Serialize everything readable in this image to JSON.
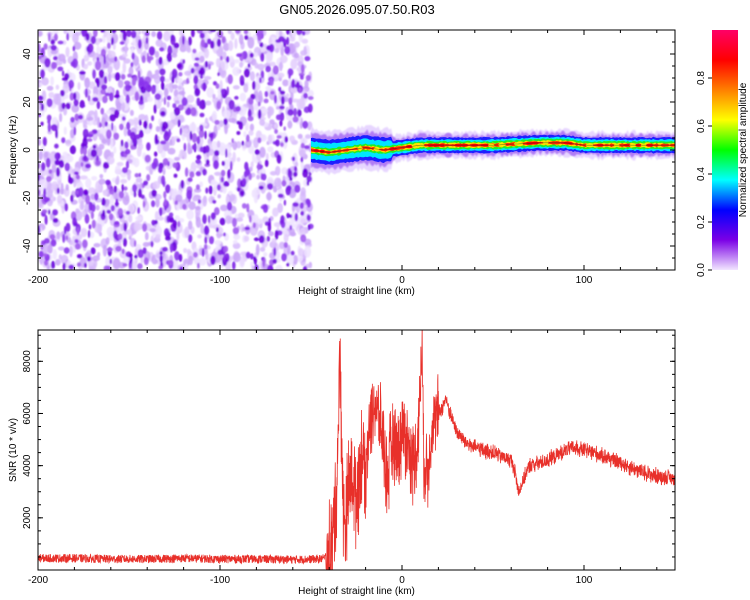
{
  "figure": {
    "title": "GN05.2026.095.07.50.R03"
  },
  "chart_data": [
    {
      "type": "heatmap",
      "xlabel": "Height of straight line (km)",
      "ylabel": "Frequency (Hz)",
      "xlim": [
        -200,
        150
      ],
      "ylim": [
        -50,
        50
      ],
      "xticks": [
        -200,
        -100,
        0,
        100
      ],
      "xtick_labels": [
        "-200",
        "-100",
        "0",
        "100"
      ],
      "yticks": [
        -40,
        -20,
        0,
        20,
        40
      ],
      "ytick_labels": [
        "-40",
        "-20",
        "0",
        "20",
        "40"
      ],
      "noise_region_x": [
        -200,
        -50
      ],
      "signal_band": {
        "x": [
          -50,
          -40,
          -30,
          -20,
          -10,
          0,
          10,
          25,
          50,
          75,
          90,
          100,
          125,
          150
        ],
        "center_freq": [
          0,
          -1,
          0,
          1,
          0,
          1,
          2,
          2,
          2,
          3,
          3,
          2,
          2,
          2
        ]
      },
      "colorbar": {
        "label": "Normalized spectral amplitude",
        "range": [
          0,
          1
        ],
        "ticks": [
          0.0,
          0.2,
          0.4,
          0.6,
          0.8
        ],
        "tick_labels": [
          "0.0",
          "0.2",
          "0.4",
          "0.6",
          "0.8"
        ],
        "colormap": [
          "#f2e6ff",
          "#7b00e6",
          "#0000ff",
          "#00ffff",
          "#00ff00",
          "#ffff00",
          "#ff8000",
          "#ff0000",
          "#ff0066"
        ]
      },
      "grid": false
    },
    {
      "type": "line",
      "xlabel": "Height of straight line (km)",
      "ylabel": "SNR (10 * v/v)",
      "xlim": [
        -200,
        150
      ],
      "ylim": [
        0,
        9200
      ],
      "xticks": [
        -200,
        -100,
        0,
        100
      ],
      "xtick_labels": [
        "-200",
        "-100",
        "0",
        "100"
      ],
      "yticks": [
        2000,
        4000,
        6000,
        8000
      ],
      "ytick_labels": [
        "2000",
        "4000",
        "6000",
        "8000"
      ],
      "series": [
        {
          "color": "#e8302a",
          "x": [
            -200,
            -180,
            -160,
            -140,
            -120,
            -100,
            -80,
            -60,
            -45,
            -40,
            -38,
            -36,
            -34,
            -32,
            -30,
            -28,
            -25,
            -22,
            -20,
            -18,
            -15,
            -12,
            -10,
            -8,
            -5,
            -2,
            0,
            3,
            6,
            8,
            10,
            11,
            12,
            14,
            16,
            18,
            20,
            22,
            24,
            26,
            30,
            35,
            40,
            50,
            60,
            62,
            64,
            70,
            80,
            90,
            95,
            100,
            110,
            120,
            130,
            140,
            150
          ],
          "y": [
            450,
            450,
            420,
            420,
            450,
            420,
            420,
            400,
            420,
            500,
            1200,
            3000,
            8200,
            1500,
            2500,
            3800,
            2800,
            4600,
            3800,
            5600,
            6400,
            5600,
            4800,
            3400,
            5200,
            4600,
            5400,
            5000,
            4000,
            4600,
            6800,
            8600,
            4200,
            3600,
            5400,
            5600,
            6000,
            6200,
            6600,
            6100,
            5300,
            4900,
            4700,
            4500,
            4200,
            3800,
            3000,
            4000,
            4200,
            4600,
            4700,
            4600,
            4400,
            4100,
            3800,
            3600,
            3500
          ]
        }
      ],
      "grid": false
    }
  ]
}
